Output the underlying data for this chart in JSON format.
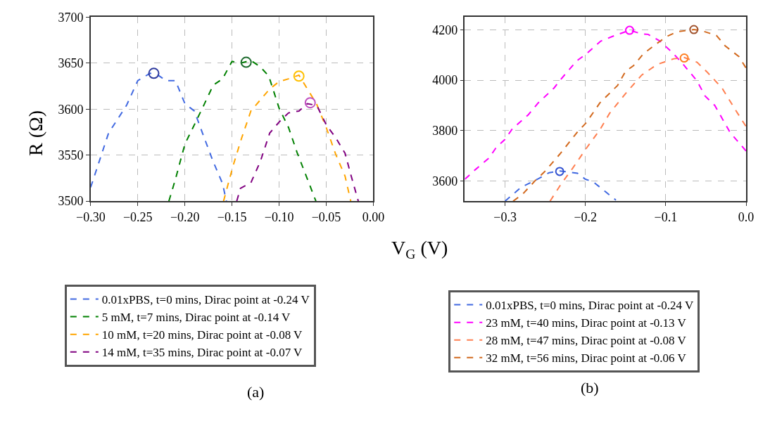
{
  "chart_data": [
    {
      "type": "line",
      "xlabel": "V$_{G}$ (V)",
      "ylabel": "R (Ω)",
      "annotations": [
        "(a)"
      ],
      "legend": "bottom",
      "grid": true,
      "line_style": "dashed",
      "xlim": [
        -0.3,
        0.0
      ],
      "ylim": [
        3500,
        3700
      ],
      "xticks": [
        {
          "value": -0.3,
          "label": "−0.30"
        },
        {
          "value": -0.25,
          "label": "−0.25"
        },
        {
          "value": -0.2,
          "label": "−0.20"
        },
        {
          "value": -0.15,
          "label": "−0.15"
        },
        {
          "value": -0.1,
          "label": "−0.10"
        },
        {
          "value": -0.05,
          "label": "−0.05"
        },
        {
          "value": 0.0,
          "label": "0.00"
        }
      ],
      "yticks": [
        3500,
        3550,
        3600,
        3650,
        3700
      ],
      "series": [
        {
          "name": "0.01xPBS, t=0 mins, Dirac point at -0.24 V",
          "color": "#4169e1",
          "x": [
            -0.3,
            -0.281,
            -0.262,
            -0.25,
            -0.237,
            -0.23,
            -0.22,
            -0.21,
            -0.2,
            -0.19,
            -0.181,
            -0.17,
            -0.16,
            -0.156
          ],
          "values": [
            3515,
            3574,
            3604,
            3631,
            3639,
            3638,
            3631,
            3631,
            3606,
            3598,
            3573,
            3543,
            3519,
            3500
          ]
        },
        {
          "name": "5 mM, t=7 mins, Dirac point at -0.14 V",
          "color": "#008000",
          "x": [
            -0.217,
            -0.21,
            -0.2,
            -0.19,
            -0.181,
            -0.17,
            -0.16,
            -0.15,
            -0.141,
            -0.13,
            -0.12,
            -0.111,
            -0.1,
            -0.09,
            -0.081,
            -0.07,
            -0.061
          ],
          "values": [
            3500,
            3524,
            3562,
            3583,
            3602,
            3626,
            3633,
            3652,
            3650,
            3653,
            3646,
            3636,
            3601,
            3580,
            3553,
            3524,
            3500
          ]
        },
        {
          "name": "10 mM, t=20 mins, Dirac point at -0.08 V",
          "color": "#ffa500",
          "x": [
            -0.159,
            -0.149,
            -0.14,
            -0.13,
            -0.12,
            -0.11,
            -0.1,
            -0.09,
            -0.079,
            -0.07,
            -0.06,
            -0.05,
            -0.04,
            -0.03,
            -0.024
          ],
          "values": [
            3500,
            3538,
            3568,
            3598,
            3610,
            3622,
            3630,
            3633,
            3637,
            3622,
            3605,
            3580,
            3551,
            3527,
            3500
          ]
        },
        {
          "name": "14 mM, t=35 mins, Dirac point at -0.07 V",
          "color": "#800080",
          "x": [
            -0.145,
            -0.141,
            -0.13,
            -0.12,
            -0.11,
            -0.1,
            -0.09,
            -0.079,
            -0.07,
            -0.06,
            -0.05,
            -0.04,
            -0.03,
            -0.024,
            -0.016
          ],
          "values": [
            3500,
            3514,
            3520,
            3543,
            3574,
            3586,
            3596,
            3598,
            3606,
            3604,
            3583,
            3569,
            3552,
            3529,
            3500
          ]
        },
        {
          "type": "scatter",
          "marker": "circle",
          "colors": [
            "#2f3b9e",
            "#1e6b2e",
            "#ffc000",
            "#c050c0"
          ],
          "x": [
            -0.233,
            -0.135,
            -0.079,
            -0.067
          ],
          "values": [
            3639,
            3651,
            3636,
            3607
          ]
        }
      ]
    },
    {
      "type": "line",
      "annotations": [
        "(b)"
      ],
      "legend": "bottom",
      "grid": true,
      "line_style": "dashed",
      "xlim": [
        -0.35,
        0.0
      ],
      "ylim": [
        3520,
        4250
      ],
      "xticks": [
        {
          "value": -0.3,
          "label": "−0.3"
        },
        {
          "value": -0.2,
          "label": "−0.2"
        },
        {
          "value": -0.1,
          "label": "−0.1"
        },
        {
          "value": 0.0,
          "label": "0.0"
        }
      ],
      "yticks": [
        3600,
        3800,
        4000,
        4200
      ],
      "series": [
        {
          "name": "0.01xPBS, t=0 mins, Dirac point at -0.24 V",
          "color": "#4169e1",
          "x": [
            -0.3,
            -0.28,
            -0.262,
            -0.245,
            -0.232,
            -0.21,
            -0.2,
            -0.19,
            -0.162
          ],
          "values": [
            3520,
            3575,
            3603,
            3633,
            3640,
            3631,
            3607,
            3596,
            3524
          ]
        },
        {
          "name": "23 mM, t=40 mins, Dirac point at -0.13 V",
          "color": "#ff00ff",
          "x": [
            -0.35,
            -0.337,
            -0.32,
            -0.311,
            -0.3,
            -0.291,
            -0.271,
            -0.259,
            -0.239,
            -0.231,
            -0.211,
            -0.199,
            -0.181,
            -0.163,
            -0.145,
            -0.13,
            -0.122,
            -0.107,
            -0.09,
            -0.078,
            -0.061,
            -0.051,
            -0.039,
            -0.02,
            0.0
          ],
          "values": [
            3607,
            3645,
            3691,
            3733,
            3765,
            3807,
            3863,
            3909,
            3969,
            4002,
            4076,
            4104,
            4155,
            4178,
            4198,
            4184,
            4182,
            4155,
            4104,
            4062,
            3997,
            3937,
            3900,
            3793,
            3719
          ]
        },
        {
          "name": "28 mM, t=47 mins, Dirac point at -0.08 V",
          "color": "#ff7f50",
          "x": [
            -0.244,
            -0.23,
            -0.216,
            -0.199,
            -0.182,
            -0.17,
            -0.15,
            -0.13,
            -0.111,
            -0.09,
            -0.077,
            -0.061,
            -0.049,
            -0.03,
            -0.014,
            0.0
          ],
          "values": [
            3520,
            3589,
            3650,
            3729,
            3803,
            3868,
            3947,
            4020,
            4062,
            4085,
            4090,
            4071,
            4034,
            3969,
            3886,
            3816
          ]
        },
        {
          "name": "32 mM, t=56 mins, Dirac point at -0.06 V",
          "color": "#d2691e",
          "x": [
            -0.29,
            -0.278,
            -0.262,
            -0.251,
            -0.232,
            -0.21,
            -0.199,
            -0.182,
            -0.16,
            -0.15,
            -0.14,
            -0.128,
            -0.113,
            -0.099,
            -0.086,
            -0.065,
            -0.055,
            -0.037,
            -0.026,
            -0.009,
            0.0
          ],
          "values": [
            3520,
            3548,
            3603,
            3636,
            3706,
            3794,
            3831,
            3910,
            3979,
            4035,
            4058,
            4104,
            4141,
            4173,
            4192,
            4201,
            4196,
            4178,
            4136,
            4094,
            4048
          ]
        },
        {
          "type": "scatter",
          "marker": "circle",
          "colors": [
            "#3050d0",
            "#ff00ff",
            "#ff7f20",
            "#a0522d"
          ],
          "x": [
            -0.232,
            -0.145,
            -0.077,
            -0.065
          ],
          "values": [
            3638,
            4198,
            4088,
            4201
          ]
        }
      ]
    }
  ]
}
